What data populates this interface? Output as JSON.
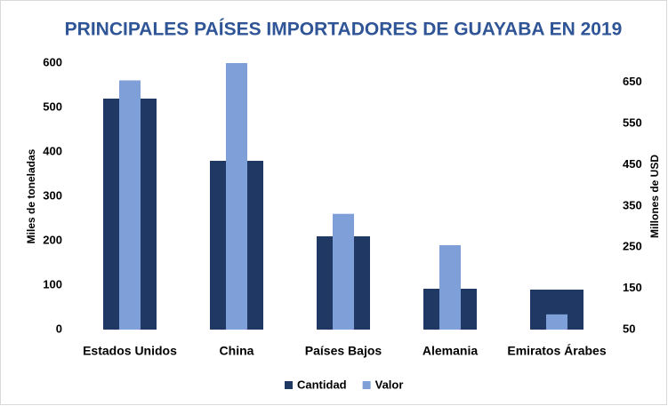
{
  "chart_data": {
    "type": "bar",
    "title": "PRINCIPALES PAÍSES IMPORTADORES DE GUAYABA  EN 2019",
    "y_label": "Miles de toneladas",
    "y2_label": "Millones de USD",
    "categories": [
      "Estados Unidos",
      "China",
      "Países Bajos",
      "Alemania",
      "Emiratos Árabes"
    ],
    "series": [
      {
        "name": "Cantidad",
        "color": "#1f3864",
        "values": [
          520,
          380,
          210,
          92,
          90
        ]
      },
      {
        "name": "Valor",
        "color": "#7f9fd8",
        "axis": "y2",
        "values": [
          655,
          700,
          331,
          255,
          87
        ]
      }
    ],
    "ylim": [
      0,
      600
    ],
    "yticks": [
      0,
      100,
      200,
      300,
      400,
      500,
      600
    ],
    "y2lim": [
      50,
      697
    ],
    "y2ticks": [
      50,
      150,
      250,
      350,
      450,
      550,
      650
    ],
    "legend": "bottom",
    "grid": false
  }
}
